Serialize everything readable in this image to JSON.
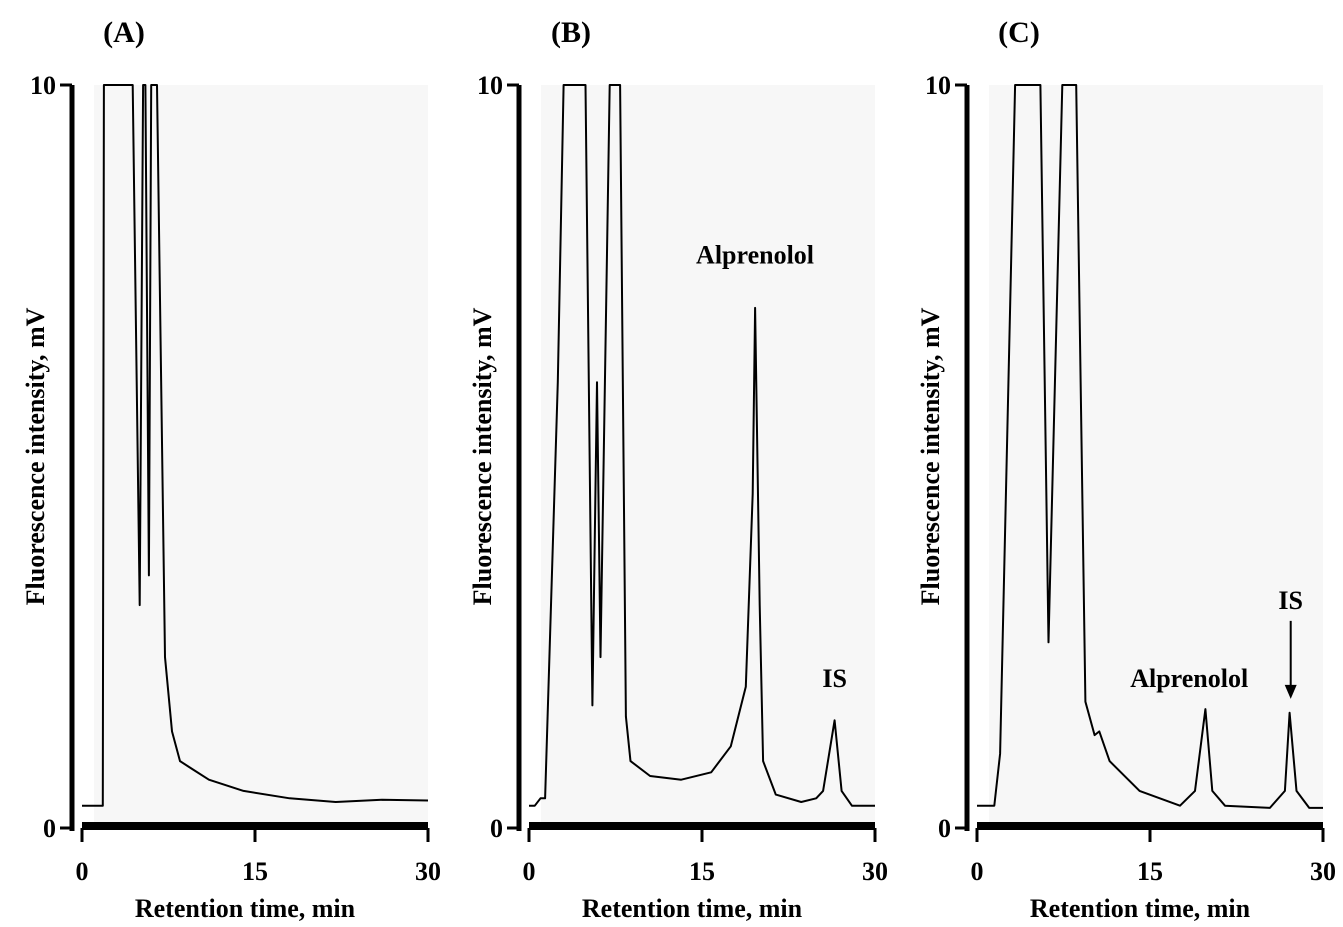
{
  "chart_data": [
    {
      "type": "line",
      "title": "(A)",
      "xlabel": "Retention time, min",
      "ylabel": "Fluorescence intensity, mV",
      "xlim": [
        0,
        30
      ],
      "ylim": [
        0,
        10
      ],
      "xticks": [
        0,
        15,
        30
      ],
      "yticks": [
        0,
        10
      ],
      "color": "#000000",
      "annotations": [],
      "x": [
        0,
        1.8,
        1.9,
        4.4,
        5.0,
        5.3,
        5.5,
        5.8,
        6.0,
        6.5,
        7.2,
        7.8,
        8.5,
        9.5,
        11,
        14,
        18,
        22,
        26,
        30
      ],
      "values": [
        0.3,
        0.3,
        10,
        10,
        3.0,
        10,
        10,
        3.4,
        10,
        10,
        2.3,
        1.3,
        0.9,
        0.8,
        0.65,
        0.5,
        0.4,
        0.35,
        0.38,
        0.37
      ]
    },
    {
      "type": "line",
      "title": "(B)",
      "xlabel": "Retention time, min",
      "ylabel": "Fluorescence intensity, mV",
      "xlim": [
        0,
        30
      ],
      "ylim": [
        0,
        10
      ],
      "xticks": [
        0,
        15,
        30
      ],
      "yticks": [
        0,
        10
      ],
      "color": "#000000",
      "annotations": [
        "Alprenolol",
        "IS"
      ],
      "x": [
        0,
        0.5,
        1.0,
        1.4,
        2.5,
        3.0,
        4.9,
        5.5,
        5.9,
        6.2,
        7.0,
        7.9,
        8.4,
        8.8,
        10.5,
        13.2,
        15.8,
        17.5,
        18.8,
        19.4,
        19.6,
        20.0,
        20.3,
        21.4,
        23.6,
        24.9,
        25.5,
        26.5,
        27.1,
        28.0,
        30
      ],
      "values": [
        0.3,
        0.3,
        0.4,
        0.4,
        6.0,
        10,
        10,
        1.65,
        6.0,
        2.3,
        10,
        10,
        1.5,
        0.9,
        0.7,
        0.65,
        0.75,
        1.1,
        1.9,
        4.5,
        7.0,
        3.0,
        0.9,
        0.45,
        0.35,
        0.4,
        0.5,
        1.45,
        0.5,
        0.3,
        0.3
      ]
    },
    {
      "type": "line",
      "title": "(C)",
      "xlabel": "Retention time, min",
      "ylabel": "Fluorescence intensity, mV",
      "xlim": [
        0,
        30
      ],
      "ylim": [
        0,
        10
      ],
      "xticks": [
        0,
        15,
        30
      ],
      "yticks": [
        0,
        10
      ],
      "color": "#000000",
      "annotations": [
        "Alprenolol",
        "IS"
      ],
      "x": [
        0,
        1.5,
        2.0,
        3.3,
        5.5,
        6.2,
        7.4,
        8.6,
        9.4,
        10.2,
        10.6,
        11.5,
        14.1,
        17.6,
        18.9,
        19.8,
        20.4,
        21.5,
        25.4,
        26.7,
        27.1,
        27.7,
        28.8,
        30
      ],
      "values": [
        0.3,
        0.3,
        1.0,
        10,
        10,
        2.5,
        10,
        10,
        1.7,
        1.25,
        1.3,
        0.9,
        0.5,
        0.3,
        0.5,
        1.6,
        0.5,
        0.3,
        0.27,
        0.5,
        1.55,
        0.5,
        0.27,
        0.27
      ]
    }
  ]
}
